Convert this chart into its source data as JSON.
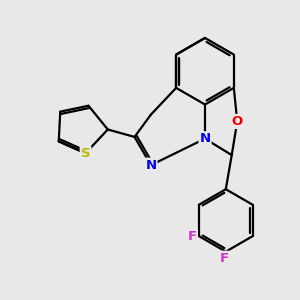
{
  "bg_color": "#e8e8e8",
  "bond_color": "#000000",
  "bond_width": 1.6,
  "S_color": "#bbbb00",
  "N_color": "#0000ee",
  "O_color": "#ee0000",
  "F_color": "#cc33cc",
  "figsize": [
    3.0,
    3.0
  ],
  "dpi": 100,
  "xlim": [
    0,
    10
  ],
  "ylim": [
    0,
    10
  ]
}
